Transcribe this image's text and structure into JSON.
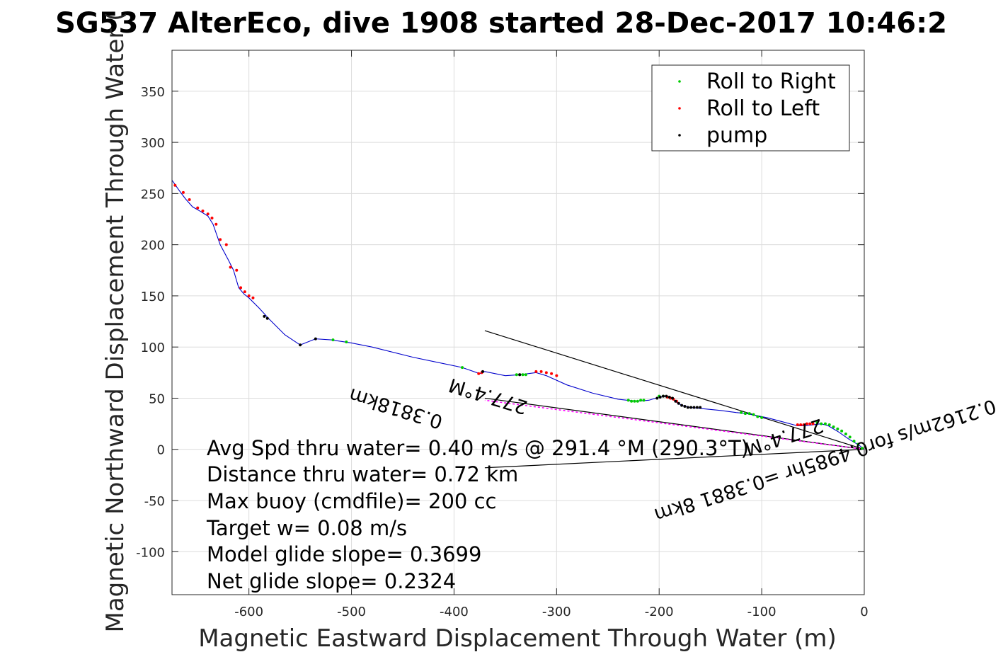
{
  "chart_data": {
    "type": "scatter",
    "title": "SG537 AlterEco, dive 1908 started 28-Dec-2017 10:46:2",
    "xlabel": "Magnetic Eastward Displacement Through Water (m)",
    "ylabel": "Magnetic Northward Displacement Through Water (",
    "xlim": [
      -675,
      0
    ],
    "ylim": [
      -142,
      390
    ],
    "xticks": [
      -600,
      -500,
      -400,
      -300,
      -200,
      -100,
      0
    ],
    "yticks": [
      -100,
      -50,
      0,
      50,
      100,
      150,
      200,
      250,
      300,
      350
    ],
    "grid": true,
    "legend_position": "top-right",
    "legend": [
      {
        "label": "Roll to Right",
        "color": "#00cc00"
      },
      {
        "label": "Roll to Left",
        "color": "#ff0000"
      },
      {
        "label": "pump",
        "color": "#000000"
      }
    ],
    "track": {
      "name": "glider track",
      "color": "#0000cc",
      "x": [
        0,
        -5,
        -15,
        -25,
        -35,
        -42,
        -50,
        -58,
        -65,
        -80,
        -95,
        -105,
        -115,
        -125,
        -140,
        -160,
        -170,
        -178,
        -183,
        -188,
        -192,
        -196,
        -200,
        -210,
        -222,
        -240,
        -265,
        -290,
        -310,
        -320,
        -335,
        -350,
        -370,
        -375,
        -392,
        -440,
        -480,
        -500,
        -520,
        -535,
        -550,
        -565,
        -580,
        -590,
        -600,
        -605,
        -610,
        -615,
        -620,
        -628,
        -635,
        -640,
        -648,
        -655,
        -662,
        -668,
        -675
      ],
      "y": [
        0,
        4,
        10,
        17,
        23,
        25,
        24,
        23,
        23,
        27,
        31,
        33,
        35,
        36,
        38,
        40,
        41,
        43,
        46,
        50,
        51,
        52,
        51,
        48,
        47,
        49,
        55,
        63,
        72,
        75,
        73,
        72,
        76,
        74,
        80,
        90,
        100,
        104,
        107,
        108,
        102,
        112,
        127,
        138,
        148,
        152,
        158,
        175,
        185,
        200,
        220,
        228,
        233,
        237,
        245,
        253,
        263
      ]
    },
    "roll_right": {
      "x": [
        -2,
        -6,
        -10,
        -14,
        -18,
        -22,
        -26,
        -30,
        -34,
        -38,
        -42,
        -46,
        -100,
        -104,
        -108,
        -112,
        -116,
        -120,
        -192,
        -196,
        -200,
        -215,
        -218,
        -221,
        -224,
        -227,
        -230,
        -330,
        -333,
        -336,
        -339,
        -392,
        -505,
        -518
      ],
      "y": [
        1,
        5,
        8,
        12,
        15,
        18,
        20,
        22,
        24,
        25,
        25,
        26,
        31,
        32,
        34,
        35,
        35,
        36,
        51,
        52,
        52,
        48,
        48,
        47,
        47,
        47,
        48,
        73,
        73,
        73,
        73,
        80,
        105,
        107
      ]
    },
    "roll_left": {
      "x": [
        -50,
        -53,
        -56,
        -59,
        -62,
        -65,
        -183,
        -186,
        -189,
        -192,
        -300,
        -305,
        -310,
        -315,
        -320,
        -373,
        -376,
        -596,
        -600,
        -604,
        -608,
        -612,
        -618,
        -622,
        -628,
        -632,
        -636,
        -640,
        -645,
        -650,
        -658,
        -664,
        -672
      ],
      "y": [
        25,
        25,
        25,
        24,
        24,
        24,
        47,
        49,
        50,
        51,
        72,
        74,
        75,
        76,
        76,
        75,
        74,
        148,
        150,
        154,
        158,
        175,
        178,
        200,
        205,
        220,
        226,
        230,
        233,
        236,
        244,
        251,
        258
      ]
    },
    "pump": {
      "x": [
        -160,
        -163,
        -166,
        -169,
        -172,
        -175,
        -178,
        -181,
        -184,
        -187,
        -190,
        -193,
        -196,
        -199,
        -202,
        -336,
        -372,
        -535,
        -550,
        -582,
        -585
      ],
      "y": [
        41,
        41,
        41,
        41,
        41,
        42,
        43,
        45,
        47,
        50,
        51,
        52,
        52,
        51,
        50,
        73,
        76,
        108,
        102,
        128,
        130
      ]
    },
    "direction_lines": [
      {
        "x": [
          0,
          -370
        ],
        "y": [
          0,
          116
        ],
        "color": "#000000"
      },
      {
        "x": [
          0,
          -370
        ],
        "y": [
          0,
          50
        ],
        "color": "#000000"
      },
      {
        "x": [
          0,
          -370
        ],
        "y": [
          0,
          -18
        ],
        "color": "#000000"
      },
      {
        "x": [
          0,
          -370
        ],
        "y": [
          0,
          48
        ],
        "color": "#ff00ff",
        "dashed": true
      }
    ],
    "annotations": [
      {
        "text": "0.3818km",
        "x": -455,
        "y": 46
      },
      {
        "text": "277.4°M",
        "x": -365,
        "y": 58
      },
      {
        "text": "0.2162m/s for0.4985hr =0.3881 8km",
        "x": -40,
        "y": -5
      },
      {
        "text": "277.4°M",
        "x": -80,
        "y": 18
      }
    ],
    "stats": [
      "Avg Spd thru water=  0.40 m/s @ 291.4 °M (290.3°T)",
      "Distance thru water=  0.72 km",
      "Max buoy (cmdfile)= 200 cc",
      "Target w= 0.08 m/s",
      "Model glide slope= 0.3699",
      "Net glide slope= 0.2324"
    ]
  }
}
